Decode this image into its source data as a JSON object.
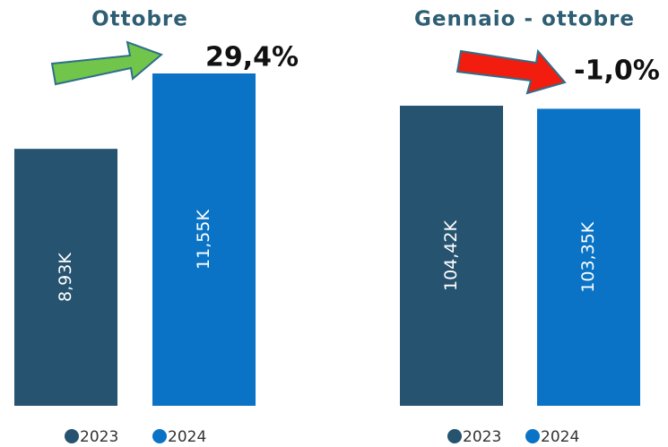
{
  "chart_data": [
    {
      "type": "bar",
      "title": "Ottobre",
      "annotation": "29,4%",
      "series": [
        {
          "name": "2023",
          "color": "#26536f",
          "values": [
            8.93
          ],
          "value_labels": [
            "8,93K"
          ]
        },
        {
          "name": "2024",
          "color": "#0a73c5",
          "values": [
            11.55
          ],
          "value_labels": [
            "11,55K"
          ]
        }
      ]
    },
    {
      "type": "bar",
      "title": "Gennaio - ottobre",
      "annotation": "-1,0%",
      "series": [
        {
          "name": "2023",
          "color": "#26536f",
          "values": [
            104.42
          ],
          "value_labels": [
            "104,42K"
          ]
        },
        {
          "name": "2024",
          "color": "#0a73c5",
          "values": [
            103.35
          ],
          "value_labels": [
            "103,35K"
          ]
        }
      ]
    }
  ]
}
